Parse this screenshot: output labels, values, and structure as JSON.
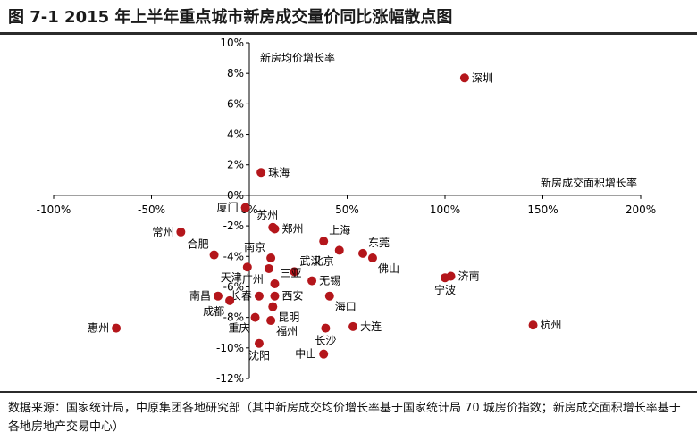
{
  "title": "图 7-1 2015 年上半年重点城市新房成交量价同比涨幅散点图",
  "source": "数据来源：国家统计局，中原集团各地研究部（其中新房成交均价增长率基于国家统计局 70 城房价指数；新房成交面积增长率基于各地房地产交易中心）",
  "colors": {
    "point": "#b4161b",
    "axis": "#000000",
    "text": "#000000"
  },
  "chart_data": {
    "type": "scatter",
    "title": "",
    "xlabel": "新房成交面积增长率",
    "ylabel": "新房均价增长率",
    "xlim": [
      -1.0,
      2.0
    ],
    "ylim": [
      -0.12,
      0.1
    ],
    "x_ticks": [
      -1.0,
      -0.5,
      0,
      0.5,
      1.0,
      1.5,
      2.0
    ],
    "x_tick_labels": [
      "-100%",
      "-50%",
      "0%",
      "50%",
      "100%",
      "150%",
      "200%"
    ],
    "y_ticks": [
      0.1,
      0.08,
      0.06,
      0.04,
      0.02,
      0,
      -0.02,
      -0.04,
      -0.06,
      -0.08,
      -0.1,
      -0.12
    ],
    "y_tick_labels": [
      "10%",
      "8%",
      "6%",
      "4%",
      "2%",
      "0%",
      "-2%",
      "-4%",
      "-6%",
      "-8%",
      "-10%",
      "-12%"
    ],
    "grid": false,
    "points": [
      {
        "label": "深圳",
        "x": 1.1,
        "y": 0.077,
        "pos": "right"
      },
      {
        "label": "珠海",
        "x": 0.06,
        "y": 0.015,
        "pos": "right"
      },
      {
        "label": "厦门",
        "x": -0.02,
        "y": -0.008,
        "pos": "left"
      },
      {
        "label": "苏州",
        "x": 0.12,
        "y": -0.021,
        "pos": "above"
      },
      {
        "label": "郑州",
        "x": 0.13,
        "y": -0.022,
        "pos": "right"
      },
      {
        "label": "常州",
        "x": -0.35,
        "y": -0.024,
        "pos": "left"
      },
      {
        "label": "上海",
        "x": 0.38,
        "y": -0.03,
        "pos": "above-right"
      },
      {
        "label": "北京",
        "x": 0.46,
        "y": -0.036,
        "pos": "below-left"
      },
      {
        "label": "东莞",
        "x": 0.58,
        "y": -0.038,
        "pos": "above-right"
      },
      {
        "label": "合肥",
        "x": -0.18,
        "y": -0.039,
        "pos": "above-left"
      },
      {
        "label": "南京",
        "x": 0.11,
        "y": -0.041,
        "pos": "above-left"
      },
      {
        "label": "佛山",
        "x": 0.63,
        "y": -0.041,
        "pos": "below-right"
      },
      {
        "label": "天津",
        "x": -0.01,
        "y": -0.047,
        "pos": "below-left"
      },
      {
        "label": "武汉",
        "x": 0.23,
        "y": -0.05,
        "pos": "above-right"
      },
      {
        "label": "广州",
        "x": 0.1,
        "y": -0.048,
        "pos": "below-left"
      },
      {
        "label": "济南",
        "x": 1.03,
        "y": -0.053,
        "pos": "right"
      },
      {
        "label": "宁波",
        "x": 1.0,
        "y": -0.054,
        "pos": "below"
      },
      {
        "label": "无锡",
        "x": 0.32,
        "y": -0.056,
        "pos": "right"
      },
      {
        "label": "三亚",
        "x": 0.13,
        "y": -0.058,
        "pos": "above-right"
      },
      {
        "label": "南昌",
        "x": -0.16,
        "y": -0.066,
        "pos": "left"
      },
      {
        "label": "长春",
        "x": 0.05,
        "y": -0.066,
        "pos": "left"
      },
      {
        "label": "西安",
        "x": 0.13,
        "y": -0.066,
        "pos": "right"
      },
      {
        "label": "海口",
        "x": 0.41,
        "y": -0.066,
        "pos": "below-right"
      },
      {
        "label": "成都",
        "x": -0.1,
        "y": -0.069,
        "pos": "below-left"
      },
      {
        "label": "昆明",
        "x": 0.12,
        "y": -0.073,
        "pos": "below-right"
      },
      {
        "label": "重庆",
        "x": 0.03,
        "y": -0.08,
        "pos": "below-left"
      },
      {
        "label": "福州",
        "x": 0.11,
        "y": -0.082,
        "pos": "below-right"
      },
      {
        "label": "惠州",
        "x": -0.68,
        "y": -0.087,
        "pos": "left"
      },
      {
        "label": "长沙",
        "x": 0.39,
        "y": -0.087,
        "pos": "below"
      },
      {
        "label": "大连",
        "x": 0.53,
        "y": -0.086,
        "pos": "right"
      },
      {
        "label": "杭州",
        "x": 1.45,
        "y": -0.085,
        "pos": "right"
      },
      {
        "label": "沈阳",
        "x": 0.05,
        "y": -0.097,
        "pos": "below"
      },
      {
        "label": "中山",
        "x": 0.38,
        "y": -0.104,
        "pos": "left"
      }
    ]
  }
}
